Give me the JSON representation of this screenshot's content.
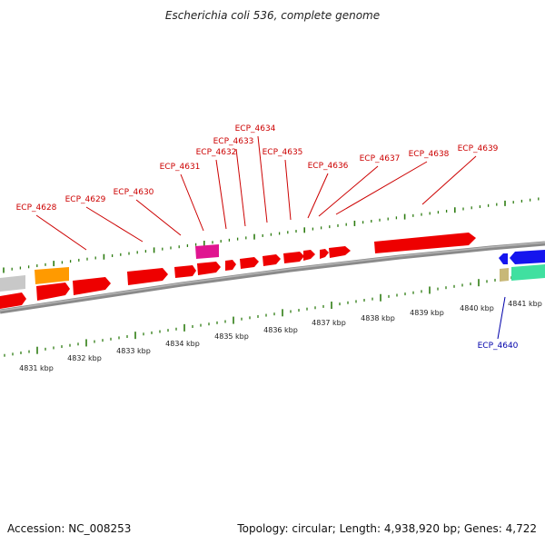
{
  "title": "Escherichia coli 536, complete genome",
  "footer": {
    "accession": "Accession: NC_008253",
    "topology": "Topology: circular; Length: 4,938,920 bp; Genes: 4,722"
  },
  "colors": {
    "plus_strand_label": "#cc0000",
    "minus_strand_label": "#0000aa",
    "tick": "#2e7d12",
    "backbone": "#8a8a8a",
    "gene_red": "#ee0000",
    "gene_orange": "#ff9a00",
    "gene_magenta": "#e01590",
    "gene_grey": "#c8c8c8",
    "gene_blue": "#1515ee",
    "gene_teal": "#40e0a0",
    "gene_tan": "#c8b878"
  },
  "scale_labels": [
    "4831 kbp",
    "4832 kbp",
    "4833 kbp",
    "4834 kbp",
    "4835 kbp",
    "4836 kbp",
    "4837 kbp",
    "4838 kbp",
    "4839 kbp",
    "4840 kbp",
    "4841 kbp"
  ],
  "gene_labels": [
    {
      "text": "ECP_4628",
      "strand": "plus"
    },
    {
      "text": "ECP_4629",
      "strand": "plus"
    },
    {
      "text": "ECP_4630",
      "strand": "plus"
    },
    {
      "text": "ECP_4631",
      "strand": "plus"
    },
    {
      "text": "ECP_4632",
      "strand": "plus"
    },
    {
      "text": "ECP_4633",
      "strand": "plus"
    },
    {
      "text": "ECP_4634",
      "strand": "plus"
    },
    {
      "text": "ECP_4635",
      "strand": "plus"
    },
    {
      "text": "ECP_4636",
      "strand": "plus"
    },
    {
      "text": "ECP_4637",
      "strand": "plus"
    },
    {
      "text": "ECP_4638",
      "strand": "plus"
    },
    {
      "text": "ECP_4639",
      "strand": "plus"
    },
    {
      "text": "ECP_4640",
      "strand": "minus"
    }
  ]
}
